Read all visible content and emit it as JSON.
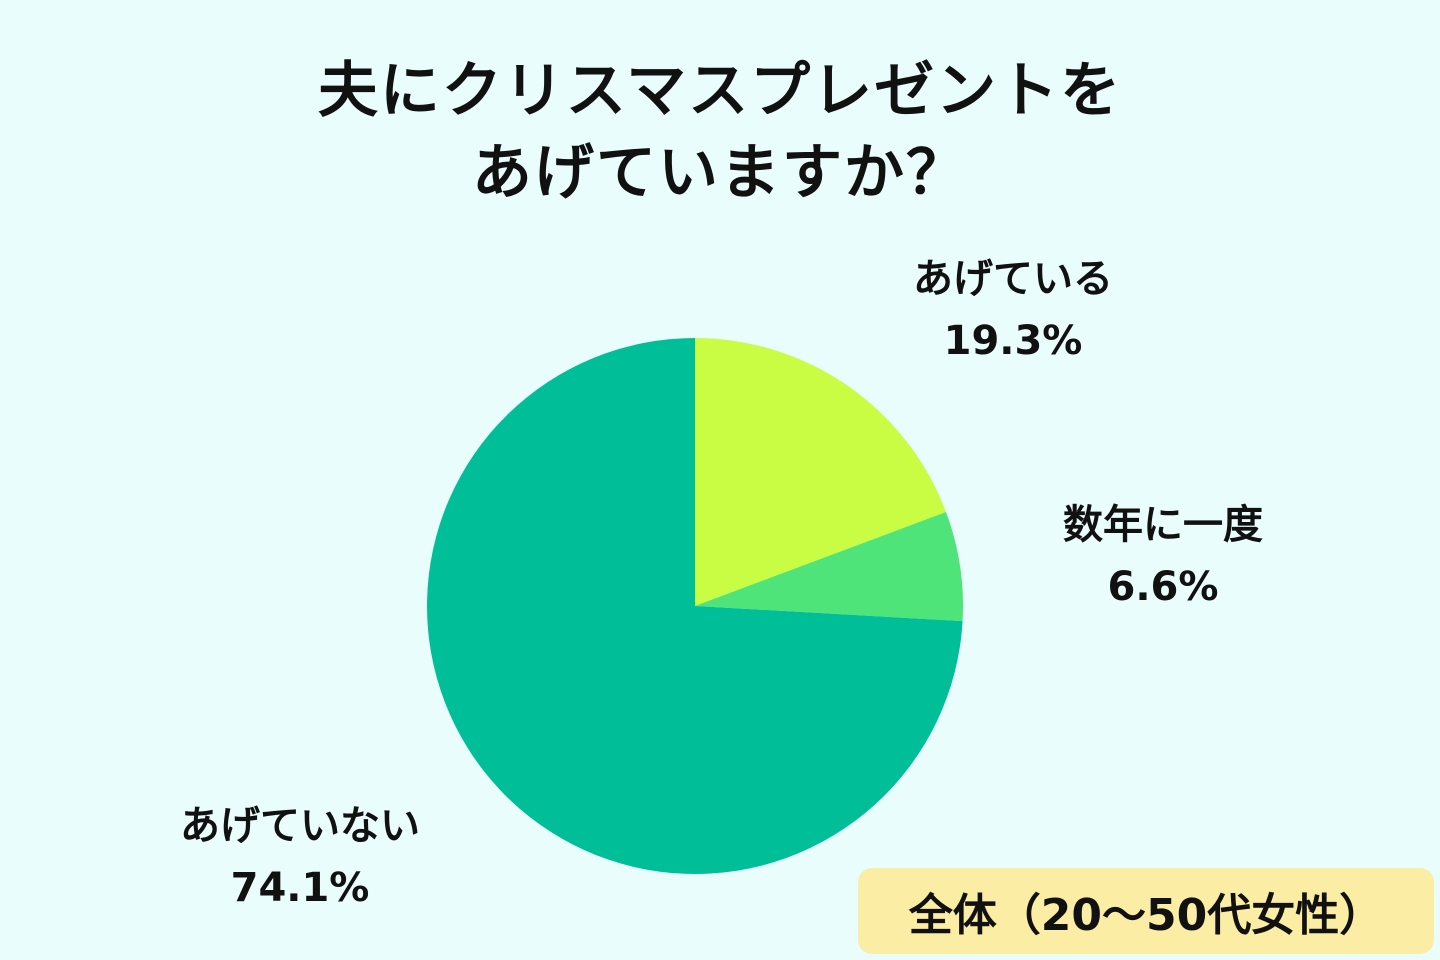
{
  "chart_data": {
    "type": "pie",
    "title_lines": [
      "夫にクリスマスプレゼントを",
      "あげていますか？"
    ],
    "slices": [
      {
        "label": "あげている",
        "value": 19.3,
        "value_text": "19.3%",
        "color": "#c8fd43"
      },
      {
        "label": "数年に一度",
        "value": 6.6,
        "value_text": "6.6%",
        "color": "#4ee47a"
      },
      {
        "label": "あげていない",
        "value": 74.1,
        "value_text": "74.1%",
        "color": "#00bf98"
      }
    ],
    "start_angle": "12 o'clock",
    "direction": "clockwise",
    "annotation": "全体（20～50代女性）"
  },
  "colors": {
    "background": "#e9fdfd",
    "badge": "#fbeda3"
  }
}
